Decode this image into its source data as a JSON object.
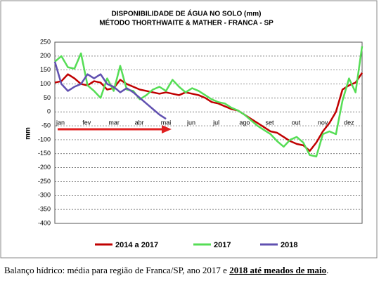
{
  "chart_data": {
    "type": "line",
    "title": "DISPONIBILIDADE DE ÁGUA NO SOLO (mm)",
    "subtitle": "MÉTODO THORTHWAITE & MATHER - FRANCA - SP",
    "y_label": "mm",
    "categories": [
      "jan",
      null,
      null,
      null,
      "fev",
      null,
      null,
      null,
      "mar",
      null,
      null,
      null,
      "abr",
      null,
      null,
      null,
      "mai",
      null,
      null,
      null,
      "jun",
      null,
      null,
      null,
      "jul",
      null,
      null,
      null,
      "ago",
      null,
      null,
      null,
      "set",
      null,
      null,
      null,
      "out",
      null,
      null,
      null,
      "nov",
      null,
      null,
      null,
      "dez",
      null,
      null,
      null
    ],
    "series": [
      {
        "name": "2014 a 2017",
        "color": "#c00000",
        "values": [
          105,
          110,
          135,
          120,
          100,
          95,
          110,
          105,
          80,
          85,
          115,
          100,
          90,
          80,
          75,
          70,
          65,
          70,
          65,
          60,
          70,
          65,
          60,
          50,
          35,
          30,
          20,
          10,
          5,
          -10,
          -25,
          -40,
          -55,
          -70,
          -75,
          -90,
          -105,
          -115,
          -120,
          -140,
          -110,
          -70,
          -40,
          0,
          80,
          95,
          105,
          140
        ]
      },
      {
        "name": "2017",
        "color": "#55dd55",
        "values": [
          180,
          200,
          160,
          155,
          210,
          95,
          75,
          50,
          120,
          75,
          165,
          80,
          75,
          45,
          60,
          80,
          90,
          75,
          115,
          90,
          70,
          85,
          75,
          60,
          45,
          35,
          30,
          15,
          5,
          -10,
          -30,
          -50,
          -65,
          -80,
          -105,
          -125,
          -100,
          -90,
          -110,
          -155,
          -160,
          -80,
          -70,
          -80,
          40,
          120,
          70,
          235
        ]
      },
      {
        "name": "2018",
        "color": "#6050b0",
        "values": [
          180,
          100,
          75,
          90,
          100,
          135,
          120,
          135,
          100,
          90,
          70,
          85,
          70,
          50,
          30,
          10,
          -10,
          -25,
          null,
          null,
          null,
          null,
          null,
          null,
          null,
          null,
          null,
          null,
          null,
          null,
          null,
          null,
          null,
          null,
          null,
          null,
          null,
          null,
          null,
          null,
          null,
          null,
          null,
          null,
          null,
          null,
          null,
          null
        ]
      }
    ],
    "ylim": [
      -400,
      250
    ],
    "yticks": [
      -400,
      -350,
      -300,
      -250,
      -200,
      -150,
      -100,
      -50,
      0,
      50,
      100,
      150,
      200,
      250
    ],
    "grid": true
  },
  "caption": {
    "text": "Balanço hídrico: média para região de Franca/SP, ano 2017 e ",
    "bold": "2018 até meados de maio",
    "end": "."
  }
}
